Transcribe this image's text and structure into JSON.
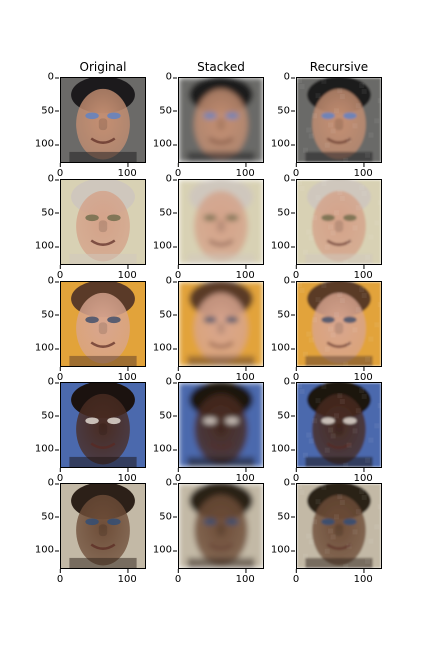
{
  "columns": [
    {
      "title": "Original"
    },
    {
      "title": "Stacked"
    },
    {
      "title": "Recursive"
    }
  ],
  "axes": {
    "y_ticks": [
      "0",
      "50",
      "100"
    ],
    "x_ticks": [
      "0",
      "100"
    ],
    "y_tick_values": [
      0,
      50,
      100
    ],
    "x_tick_values": [
      0,
      100
    ],
    "extent": 128
  },
  "rows": [
    {
      "subject": "face-sunglasses",
      "bg": "#6b6a68",
      "skin": "#c58f72",
      "hair": "#1c1a1c",
      "accent": "#5b82c9"
    },
    {
      "subject": "face-officer",
      "bg": "#d8d1b4",
      "skin": "#d4a289",
      "hair": "#cfc7bd",
      "accent": "#6d6a4a"
    },
    {
      "subject": "face-glasses",
      "bg": "#e2a33a",
      "skin": "#d8a58f",
      "hair": "#5a3a28",
      "accent": "#3a4b6a"
    },
    {
      "subject": "face-dark",
      "bg": "#4b69ad",
      "skin": "#4a2c22",
      "hair": "#1b120f",
      "accent": "#e9e2da"
    },
    {
      "subject": "face-dark-2",
      "bg": "#c3b9a6",
      "skin": "#6e4d38",
      "hair": "#2c2018",
      "accent": "#304d78"
    }
  ],
  "variants": [
    "original",
    "stacked",
    "recursive"
  ]
}
